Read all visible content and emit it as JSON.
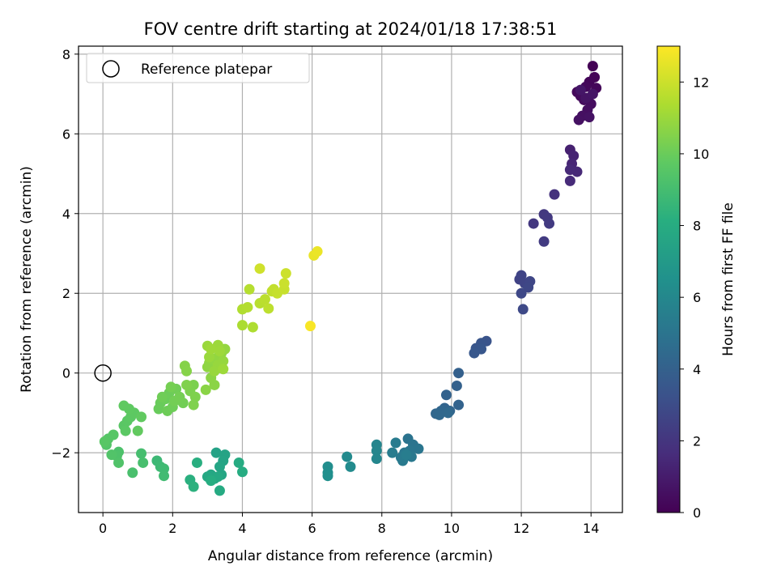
{
  "chart_data": {
    "type": "scatter",
    "title": "FOV centre drift starting at 2024/01/18 17:38:51",
    "xlabel": "Angular distance from reference (arcmin)",
    "ylabel": "Rotation from reference (arcmin)",
    "xlim": [
      -0.7,
      14.9
    ],
    "ylim": [
      -3.5,
      8.2
    ],
    "xticks": [
      0,
      2,
      4,
      6,
      8,
      10,
      12,
      14
    ],
    "yticks": [
      -2,
      0,
      2,
      4,
      6,
      8
    ],
    "grid": true,
    "legend": {
      "position": "top-left",
      "entries": [
        "Reference platepar"
      ]
    },
    "reference": {
      "x": 0,
      "y": 0
    },
    "colorbar": {
      "label": "Hours from first FF file",
      "range": [
        0,
        13
      ],
      "ticks": [
        0,
        2,
        4,
        6,
        8,
        10,
        12
      ],
      "colormap": "viridis"
    },
    "points": [
      {
        "x": 14.05,
        "y": 7.7,
        "c": 0.05
      },
      {
        "x": 14.1,
        "y": 7.42,
        "c": 0.1
      },
      {
        "x": 13.95,
        "y": 7.3,
        "c": 0.15
      },
      {
        "x": 14.15,
        "y": 7.15,
        "c": 0.2
      },
      {
        "x": 13.85,
        "y": 7.18,
        "c": 0.25
      },
      {
        "x": 13.6,
        "y": 7.05,
        "c": 0.3
      },
      {
        "x": 13.7,
        "y": 6.95,
        "c": 0.35
      },
      {
        "x": 13.8,
        "y": 6.85,
        "c": 0.4
      },
      {
        "x": 14.0,
        "y": 6.75,
        "c": 0.45
      },
      {
        "x": 13.9,
        "y": 6.6,
        "c": 0.5
      },
      {
        "x": 13.75,
        "y": 6.45,
        "c": 0.55
      },
      {
        "x": 13.65,
        "y": 6.35,
        "c": 0.6
      },
      {
        "x": 13.95,
        "y": 6.42,
        "c": 0.65
      },
      {
        "x": 13.85,
        "y": 6.9,
        "c": 0.7
      },
      {
        "x": 14.05,
        "y": 7.0,
        "c": 0.75
      },
      {
        "x": 13.7,
        "y": 7.1,
        "c": 0.8
      },
      {
        "x": 13.4,
        "y": 5.6,
        "c": 1.2
      },
      {
        "x": 13.5,
        "y": 5.45,
        "c": 1.3
      },
      {
        "x": 13.45,
        "y": 5.25,
        "c": 1.4
      },
      {
        "x": 13.6,
        "y": 5.05,
        "c": 1.5
      },
      {
        "x": 13.4,
        "y": 5.1,
        "c": 1.55
      },
      {
        "x": 13.4,
        "y": 4.82,
        "c": 1.6
      },
      {
        "x": 12.95,
        "y": 4.48,
        "c": 1.9
      },
      {
        "x": 12.35,
        "y": 3.75,
        "c": 2.1
      },
      {
        "x": 12.65,
        "y": 3.98,
        "c": 2.15
      },
      {
        "x": 12.75,
        "y": 3.9,
        "c": 2.2
      },
      {
        "x": 12.8,
        "y": 3.75,
        "c": 2.25
      },
      {
        "x": 12.65,
        "y": 3.3,
        "c": 2.3
      },
      {
        "x": 11.95,
        "y": 2.35,
        "c": 2.6
      },
      {
        "x": 12.0,
        "y": 2.45,
        "c": 2.65
      },
      {
        "x": 12.1,
        "y": 2.25,
        "c": 2.7
      },
      {
        "x": 12.25,
        "y": 2.3,
        "c": 2.75
      },
      {
        "x": 12.2,
        "y": 2.15,
        "c": 2.8
      },
      {
        "x": 12.0,
        "y": 2.0,
        "c": 2.85
      },
      {
        "x": 12.05,
        "y": 1.6,
        "c": 2.9
      },
      {
        "x": 11.0,
        "y": 0.8,
        "c": 3.4
      },
      {
        "x": 10.85,
        "y": 0.75,
        "c": 3.45
      },
      {
        "x": 10.7,
        "y": 0.62,
        "c": 3.5
      },
      {
        "x": 10.85,
        "y": 0.6,
        "c": 3.55
      },
      {
        "x": 10.65,
        "y": 0.5,
        "c": 3.6
      },
      {
        "x": 10.2,
        "y": 0.0,
        "c": 4.0
      },
      {
        "x": 10.15,
        "y": -0.32,
        "c": 4.05
      },
      {
        "x": 9.85,
        "y": -0.55,
        "c": 4.1
      },
      {
        "x": 10.2,
        "y": -0.8,
        "c": 4.15
      },
      {
        "x": 9.8,
        "y": -0.88,
        "c": 4.2
      },
      {
        "x": 9.95,
        "y": -0.95,
        "c": 4.25
      },
      {
        "x": 9.7,
        "y": -0.95,
        "c": 4.3
      },
      {
        "x": 9.55,
        "y": -1.02,
        "c": 4.35
      },
      {
        "x": 9.65,
        "y": -1.05,
        "c": 4.4
      },
      {
        "x": 9.9,
        "y": -1.0,
        "c": 4.45
      },
      {
        "x": 8.75,
        "y": -1.65,
        "c": 5.0
      },
      {
        "x": 8.9,
        "y": -1.8,
        "c": 5.05
      },
      {
        "x": 9.05,
        "y": -1.9,
        "c": 5.1
      },
      {
        "x": 8.8,
        "y": -1.95,
        "c": 5.15
      },
      {
        "x": 8.65,
        "y": -2.0,
        "c": 5.2
      },
      {
        "x": 8.85,
        "y": -2.1,
        "c": 5.25
      },
      {
        "x": 8.55,
        "y": -2.12,
        "c": 5.3
      },
      {
        "x": 8.6,
        "y": -2.2,
        "c": 5.35
      },
      {
        "x": 8.4,
        "y": -1.75,
        "c": 5.4
      },
      {
        "x": 8.3,
        "y": -2.0,
        "c": 5.45
      },
      {
        "x": 8.7,
        "y": -2.05,
        "c": 5.5
      },
      {
        "x": 7.85,
        "y": -1.8,
        "c": 5.9
      },
      {
        "x": 7.85,
        "y": -1.95,
        "c": 5.95
      },
      {
        "x": 7.85,
        "y": -2.15,
        "c": 6.0
      },
      {
        "x": 7.0,
        "y": -2.1,
        "c": 6.2
      },
      {
        "x": 7.1,
        "y": -2.35,
        "c": 6.25
      },
      {
        "x": 6.45,
        "y": -2.35,
        "c": 6.4
      },
      {
        "x": 6.45,
        "y": -2.5,
        "c": 6.45
      },
      {
        "x": 6.45,
        "y": -2.58,
        "c": 6.5
      },
      {
        "x": 3.25,
        "y": -2.0,
        "c": 7.5
      },
      {
        "x": 3.5,
        "y": -2.05,
        "c": 7.55
      },
      {
        "x": 3.45,
        "y": -2.2,
        "c": 7.6
      },
      {
        "x": 3.35,
        "y": -2.35,
        "c": 7.65
      },
      {
        "x": 3.4,
        "y": -2.55,
        "c": 7.7
      },
      {
        "x": 3.1,
        "y": -2.55,
        "c": 7.75
      },
      {
        "x": 3.2,
        "y": -2.65,
        "c": 7.8
      },
      {
        "x": 3.0,
        "y": -2.6,
        "c": 7.85
      },
      {
        "x": 3.3,
        "y": -2.6,
        "c": 7.9
      },
      {
        "x": 3.35,
        "y": -2.95,
        "c": 7.95
      },
      {
        "x": 3.9,
        "y": -2.25,
        "c": 8.0
      },
      {
        "x": 4.0,
        "y": -2.48,
        "c": 8.05
      },
      {
        "x": 3.1,
        "y": -2.7,
        "c": 8.1
      },
      {
        "x": 2.7,
        "y": -2.25,
        "c": 8.2
      },
      {
        "x": 2.5,
        "y": -2.68,
        "c": 8.25
      },
      {
        "x": 2.6,
        "y": -2.85,
        "c": 8.3
      },
      {
        "x": 1.55,
        "y": -2.2,
        "c": 8.8
      },
      {
        "x": 1.65,
        "y": -2.35,
        "c": 8.85
      },
      {
        "x": 1.75,
        "y": -2.4,
        "c": 8.9
      },
      {
        "x": 1.75,
        "y": -2.58,
        "c": 8.95
      },
      {
        "x": 1.1,
        "y": -2.02,
        "c": 9.1
      },
      {
        "x": 1.15,
        "y": -2.25,
        "c": 9.15
      },
      {
        "x": 0.85,
        "y": -2.5,
        "c": 9.2
      },
      {
        "x": 0.45,
        "y": -1.98,
        "c": 9.3
      },
      {
        "x": 0.4,
        "y": -2.08,
        "c": 9.35
      },
      {
        "x": 0.45,
        "y": -2.25,
        "c": 9.4
      },
      {
        "x": 0.25,
        "y": -2.05,
        "c": 9.45
      },
      {
        "x": 0.1,
        "y": -1.8,
        "c": 9.5
      },
      {
        "x": 0.15,
        "y": -1.65,
        "c": 9.55
      },
      {
        "x": 0.3,
        "y": -1.55,
        "c": 9.6
      },
      {
        "x": 0.05,
        "y": -1.72,
        "c": 9.62
      },
      {
        "x": 0.6,
        "y": -1.32,
        "c": 9.65
      },
      {
        "x": 0.7,
        "y": -1.2,
        "c": 9.7
      },
      {
        "x": 0.65,
        "y": -1.45,
        "c": 9.72
      },
      {
        "x": 0.8,
        "y": -1.1,
        "c": 9.75
      },
      {
        "x": 0.9,
        "y": -1.0,
        "c": 9.78
      },
      {
        "x": 0.75,
        "y": -0.9,
        "c": 9.8
      },
      {
        "x": 0.6,
        "y": -0.82,
        "c": 9.82
      },
      {
        "x": 1.1,
        "y": -1.1,
        "c": 9.85
      },
      {
        "x": 1.0,
        "y": -1.45,
        "c": 9.87
      },
      {
        "x": 1.6,
        "y": -0.9,
        "c": 10.0
      },
      {
        "x": 1.65,
        "y": -0.75,
        "c": 10.02
      },
      {
        "x": 1.8,
        "y": -0.65,
        "c": 10.05
      },
      {
        "x": 1.9,
        "y": -0.5,
        "c": 10.08
      },
      {
        "x": 1.85,
        "y": -0.95,
        "c": 10.1
      },
      {
        "x": 2.0,
        "y": -0.85,
        "c": 10.12
      },
      {
        "x": 1.7,
        "y": -0.6,
        "c": 10.15
      },
      {
        "x": 2.1,
        "y": -0.4,
        "c": 10.18
      },
      {
        "x": 2.3,
        "y": -0.75,
        "c": 10.2
      },
      {
        "x": 2.05,
        "y": -0.7,
        "c": 10.22
      },
      {
        "x": 2.2,
        "y": -0.6,
        "c": 10.25
      },
      {
        "x": 1.95,
        "y": -0.35,
        "c": 10.28
      },
      {
        "x": 2.6,
        "y": -0.3,
        "c": 10.4
      },
      {
        "x": 2.5,
        "y": -0.45,
        "c": 10.42
      },
      {
        "x": 2.65,
        "y": -0.6,
        "c": 10.45
      },
      {
        "x": 2.6,
        "y": -0.8,
        "c": 10.48
      },
      {
        "x": 2.4,
        "y": -0.3,
        "c": 10.5
      },
      {
        "x": 2.35,
        "y": 0.18,
        "c": 10.6
      },
      {
        "x": 2.4,
        "y": 0.05,
        "c": 10.62
      },
      {
        "x": 2.95,
        "y": -0.42,
        "c": 10.7
      },
      {
        "x": 3.2,
        "y": -0.3,
        "c": 10.72
      },
      {
        "x": 3.1,
        "y": -0.12,
        "c": 10.75
      },
      {
        "x": 3.0,
        "y": 0.15,
        "c": 10.8
      },
      {
        "x": 3.05,
        "y": 0.25,
        "c": 10.82
      },
      {
        "x": 3.15,
        "y": 0.35,
        "c": 10.85
      },
      {
        "x": 3.3,
        "y": 0.4,
        "c": 10.88
      },
      {
        "x": 3.4,
        "y": 0.5,
        "c": 10.9
      },
      {
        "x": 3.5,
        "y": 0.6,
        "c": 10.92
      },
      {
        "x": 3.45,
        "y": 0.3,
        "c": 10.95
      },
      {
        "x": 3.3,
        "y": 0.2,
        "c": 10.98
      },
      {
        "x": 3.2,
        "y": 0.05,
        "c": 11.0
      },
      {
        "x": 3.05,
        "y": 0.4,
        "c": 11.02
      },
      {
        "x": 3.0,
        "y": 0.68,
        "c": 11.05
      },
      {
        "x": 3.3,
        "y": 0.7,
        "c": 11.08
      },
      {
        "x": 3.45,
        "y": 0.1,
        "c": 11.1
      },
      {
        "x": 3.35,
        "y": 0.55,
        "c": 11.12
      },
      {
        "x": 3.1,
        "y": 0.6,
        "c": 11.15
      },
      {
        "x": 4.0,
        "y": 1.2,
        "c": 11.4
      },
      {
        "x": 4.3,
        "y": 1.15,
        "c": 11.45
      },
      {
        "x": 4.0,
        "y": 1.6,
        "c": 11.5
      },
      {
        "x": 4.15,
        "y": 1.65,
        "c": 11.55
      },
      {
        "x": 4.2,
        "y": 2.1,
        "c": 11.6
      },
      {
        "x": 4.5,
        "y": 1.75,
        "c": 11.65
      },
      {
        "x": 4.65,
        "y": 1.85,
        "c": 11.7
      },
      {
        "x": 4.75,
        "y": 1.62,
        "c": 11.75
      },
      {
        "x": 4.85,
        "y": 2.05,
        "c": 11.8
      },
      {
        "x": 4.9,
        "y": 2.1,
        "c": 11.85
      },
      {
        "x": 5.0,
        "y": 2.0,
        "c": 11.9
      },
      {
        "x": 5.2,
        "y": 2.1,
        "c": 11.95
      },
      {
        "x": 5.2,
        "y": 2.25,
        "c": 12.0
      },
      {
        "x": 5.25,
        "y": 2.5,
        "c": 12.05
      },
      {
        "x": 4.5,
        "y": 2.62,
        "c": 12.1
      },
      {
        "x": 6.05,
        "y": 2.95,
        "c": 12.6
      },
      {
        "x": 6.15,
        "y": 3.05,
        "c": 12.65
      },
      {
        "x": 5.95,
        "y": 1.18,
        "c": 12.9
      }
    ]
  }
}
